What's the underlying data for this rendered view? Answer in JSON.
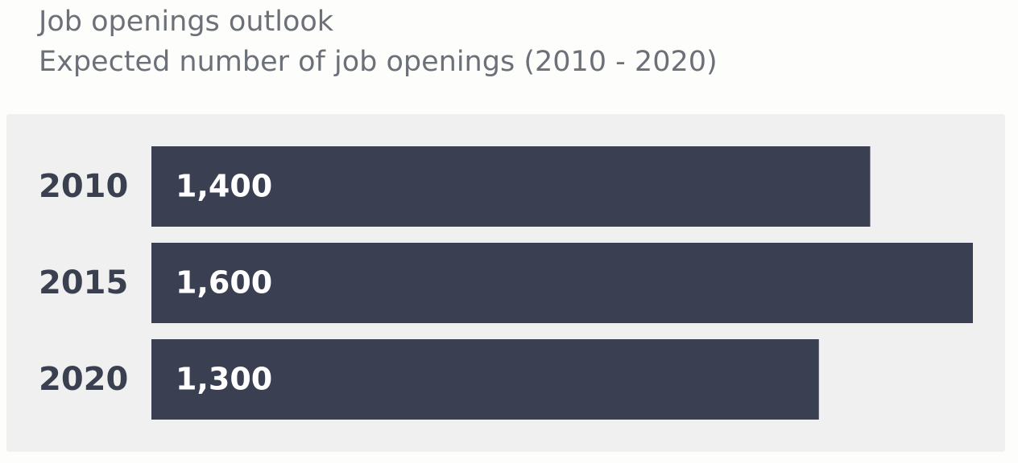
{
  "chart_data": {
    "type": "bar",
    "orientation": "horizontal",
    "title": "Job openings outlook",
    "subtitle": "Expected number of job openings (2010 - 2020)",
    "categories": [
      "2010",
      "2015",
      "2020"
    ],
    "values": [
      1400,
      1600,
      1300
    ],
    "value_labels": [
      "1,400",
      "1,600",
      "1,300"
    ],
    "color": "#3a4052"
  }
}
